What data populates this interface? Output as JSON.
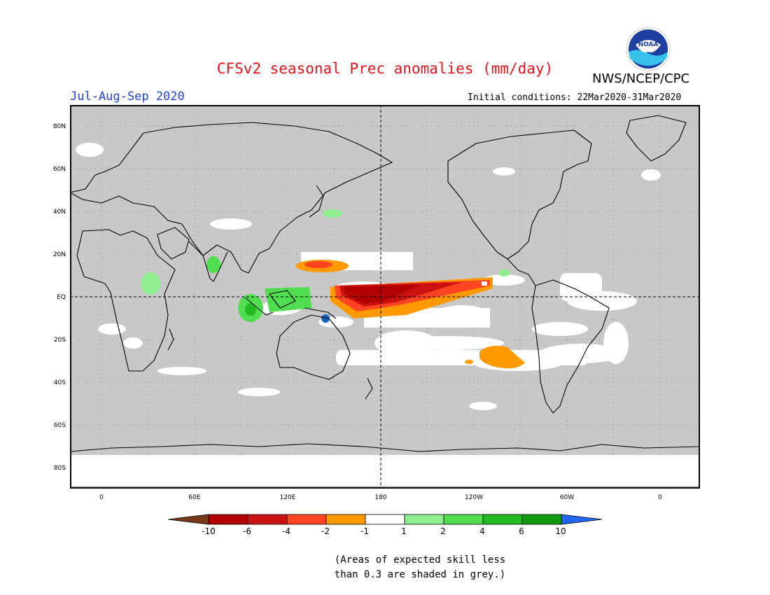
{
  "header": {
    "title": "CFSv2 seasonal Prec anomalies (mm/day)",
    "season": "Jul-Aug-Sep 2020",
    "initial_conditions": "Initial conditions: 22Mar2020-31Mar2020",
    "agency": "NWS/NCEP/CPC",
    "logo_text": "NOAA"
  },
  "map": {
    "lat_labels": [
      "80N",
      "60N",
      "40N",
      "20N",
      "EQ",
      "20S",
      "40S",
      "60S",
      "80S"
    ],
    "lon_labels": [
      "0",
      "60E",
      "120E",
      "180",
      "120W",
      "60W",
      "0"
    ],
    "background_color": "#c8c8c8",
    "reference_lines": [
      "equator",
      "180 meridian"
    ]
  },
  "legend": {
    "labels": [
      "-10",
      "-6",
      "-4",
      "-2",
      "-1",
      "1",
      "2",
      "4",
      "6",
      "10"
    ],
    "colors": [
      "#7a3a1a",
      "#b30000",
      "#cc1111",
      "#ff4422",
      "#ff9900",
      "#ffffff",
      "#90ee90",
      "#50dd50",
      "#22bb22",
      "#119911",
      "#2266ee"
    ],
    "note_line1": "(Areas of expected skill less",
    "note_line2": "than 0.3 are shaded in grey.)"
  }
}
